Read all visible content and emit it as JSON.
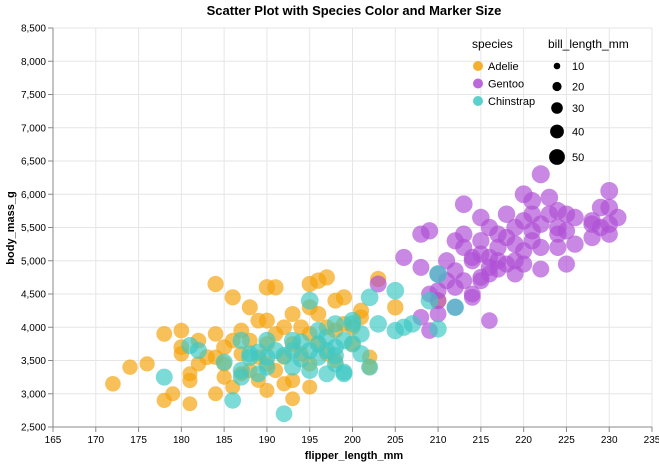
{
  "chart_data": {
    "type": "scatter",
    "title": "Scatter Plot with Species Color and Marker Size",
    "xlabel": "flipper_length_mm",
    "ylabel": "body_mass_g",
    "xlim": [
      165,
      235
    ],
    "ylim": [
      2500,
      8500
    ],
    "x_ticks": [
      "165",
      "170",
      "175",
      "180",
      "185",
      "190",
      "195",
      "200",
      "205",
      "210",
      "215",
      "220",
      "225",
      "230",
      "235"
    ],
    "y_ticks": [
      "2,500",
      "3,000",
      "3,500",
      "4,000",
      "4,500",
      "5,000",
      "5,500",
      "6,000",
      "6,500",
      "7,000",
      "7,500",
      "8,000",
      "8,500"
    ],
    "grid": true,
    "legend_placement": "top-right",
    "color_legend": {
      "title": "species",
      "entries": [
        {
          "label": "Adelie",
          "color": "#f5a20a"
        },
        {
          "label": "Gentoo",
          "color": "#b04fd6"
        },
        {
          "label": "Chinstrap",
          "color": "#3ec9c4"
        }
      ]
    },
    "size_legend": {
      "title": "bill_length_mm",
      "entries": [
        {
          "label": "10",
          "value": 10
        },
        {
          "label": "20",
          "value": 20
        },
        {
          "label": "30",
          "value": 30
        },
        {
          "label": "40",
          "value": 40
        },
        {
          "label": "50",
          "value": 50
        }
      ]
    },
    "series": [
      {
        "name": "Adelie",
        "color": "#f5a20a",
        "points": [
          [
            172,
            3150,
            39
          ],
          [
            174,
            3400,
            38
          ],
          [
            176,
            3450,
            37
          ],
          [
            178,
            3900,
            40
          ],
          [
            178,
            2900,
            37
          ],
          [
            179,
            3000,
            36
          ],
          [
            180,
            3950,
            39
          ],
          [
            180,
            3600,
            38
          ],
          [
            180,
            3700,
            40
          ],
          [
            181,
            3300,
            36
          ],
          [
            181,
            3200,
            37
          ],
          [
            181,
            2850,
            35
          ],
          [
            182,
            3800,
            39
          ],
          [
            182,
            3450,
            38
          ],
          [
            183,
            3550,
            40
          ],
          [
            184,
            4650,
            42
          ],
          [
            184,
            3900,
            39
          ],
          [
            184,
            3550,
            38
          ],
          [
            184,
            3000,
            36
          ],
          [
            185,
            3250,
            37
          ],
          [
            185,
            3700,
            41
          ],
          [
            185,
            3450,
            38
          ],
          [
            186,
            4450,
            42
          ],
          [
            186,
            3800,
            39
          ],
          [
            186,
            3100,
            36
          ],
          [
            187,
            3600,
            38
          ],
          [
            187,
            3300,
            37
          ],
          [
            187,
            3950,
            40
          ],
          [
            188,
            4300,
            41
          ],
          [
            188,
            3350,
            38
          ],
          [
            188,
            3800,
            39
          ],
          [
            189,
            3200,
            36
          ],
          [
            189,
            3550,
            38
          ],
          [
            189,
            4100,
            40
          ],
          [
            190,
            4600,
            43
          ],
          [
            190,
            4100,
            41
          ],
          [
            190,
            3750,
            39
          ],
          [
            190,
            3450,
            38
          ],
          [
            190,
            3050,
            36
          ],
          [
            191,
            4600,
            42
          ],
          [
            191,
            3900,
            39
          ],
          [
            191,
            3350,
            37
          ],
          [
            192,
            4000,
            40
          ],
          [
            192,
            3550,
            38
          ],
          [
            192,
            3150,
            37
          ],
          [
            193,
            4200,
            41
          ],
          [
            193,
            3750,
            39
          ],
          [
            193,
            3200,
            37
          ],
          [
            193,
            2925,
            35
          ],
          [
            194,
            4000,
            40
          ],
          [
            194,
            3600,
            38
          ],
          [
            195,
            4650,
            42
          ],
          [
            195,
            4300,
            41
          ],
          [
            195,
            3900,
            39
          ],
          [
            195,
            3450,
            38
          ],
          [
            195,
            3100,
            36
          ],
          [
            196,
            4700,
            43
          ],
          [
            196,
            4200,
            41
          ],
          [
            196,
            3750,
            39
          ],
          [
            197,
            4750,
            42
          ],
          [
            197,
            4000,
            40
          ],
          [
            197,
            3600,
            38
          ],
          [
            198,
            4400,
            41
          ],
          [
            198,
            3950,
            40
          ],
          [
            198,
            3500,
            38
          ],
          [
            199,
            4450,
            42
          ],
          [
            199,
            4050,
            40
          ],
          [
            200,
            4000,
            41
          ],
          [
            200,
            3750,
            39
          ],
          [
            201,
            4150,
            40
          ],
          [
            201,
            4250,
            41
          ],
          [
            202,
            3550,
            38
          ],
          [
            202,
            3400,
            38
          ],
          [
            203,
            4725,
            42
          ],
          [
            205,
            4300,
            43
          ],
          [
            210,
            4400,
            42
          ]
        ]
      },
      {
        "name": "Gentoo",
        "color": "#b04fd6",
        "points": [
          [
            203,
            4650,
            46
          ],
          [
            206,
            5050,
            47
          ],
          [
            208,
            4150,
            44
          ],
          [
            208,
            4900,
            46
          ],
          [
            208,
            5400,
            48
          ],
          [
            209,
            3950,
            44
          ],
          [
            209,
            4500,
            45
          ],
          [
            209,
            5450,
            48
          ],
          [
            210,
            4200,
            45
          ],
          [
            210,
            4800,
            46
          ],
          [
            210,
            4400,
            46
          ],
          [
            210,
            4550,
            46
          ],
          [
            211,
            4700,
            46
          ],
          [
            211,
            5000,
            47
          ],
          [
            212,
            4600,
            46
          ],
          [
            212,
            4300,
            45
          ],
          [
            212,
            4850,
            46
          ],
          [
            213,
            4700,
            46
          ],
          [
            213,
            5200,
            47
          ],
          [
            213,
            5400,
            48
          ],
          [
            213,
            5850,
            50
          ],
          [
            214,
            4500,
            45
          ],
          [
            214,
            5000,
            47
          ],
          [
            214,
            4450,
            45
          ],
          [
            215,
            4700,
            46
          ],
          [
            215,
            5100,
            47
          ],
          [
            215,
            5650,
            49
          ],
          [
            215,
            5300,
            48
          ],
          [
            215,
            4750,
            46
          ],
          [
            216,
            4900,
            47
          ],
          [
            216,
            5500,
            48
          ],
          [
            216,
            5050,
            47
          ],
          [
            216,
            4100,
            44
          ],
          [
            216,
            4800,
            46
          ],
          [
            217,
            5000,
            47
          ],
          [
            217,
            4875,
            47
          ],
          [
            217,
            5200,
            48
          ],
          [
            218,
            4950,
            47
          ],
          [
            218,
            5700,
            49
          ],
          [
            218,
            5350,
            48
          ],
          [
            219,
            4800,
            46
          ],
          [
            219,
            5250,
            48
          ],
          [
            219,
            5500,
            49
          ],
          [
            220,
            5150,
            47
          ],
          [
            220,
            5600,
            49
          ],
          [
            220,
            6000,
            51
          ],
          [
            220,
            4950,
            47
          ],
          [
            221,
            5300,
            48
          ],
          [
            221,
            5450,
            48
          ],
          [
            221,
            5900,
            50
          ],
          [
            222,
            6300,
            52
          ],
          [
            222,
            5550,
            49
          ],
          [
            222,
            5200,
            47
          ],
          [
            222,
            4875,
            46
          ],
          [
            223,
            5700,
            49
          ],
          [
            223,
            5950,
            50
          ],
          [
            224,
            5400,
            48
          ],
          [
            224,
            5500,
            49
          ],
          [
            224,
            5750,
            50
          ],
          [
            225,
            5450,
            48
          ],
          [
            225,
            4950,
            47
          ],
          [
            225,
            5700,
            49
          ],
          [
            226,
            5250,
            48
          ],
          [
            226,
            5650,
            49
          ],
          [
            228,
            5350,
            48
          ],
          [
            228,
            5550,
            49
          ],
          [
            229,
            5800,
            50
          ],
          [
            229,
            5500,
            48
          ],
          [
            230,
            5800,
            50
          ],
          [
            230,
            5550,
            49
          ],
          [
            230,
            6050,
            51
          ],
          [
            231,
            5650,
            49
          ],
          [
            230,
            5400,
            48
          ],
          [
            228,
            5600,
            49
          ],
          [
            224,
            5200,
            47
          ],
          [
            221,
            5700,
            49
          ],
          [
            219,
            5000,
            47
          ],
          [
            217,
            5400,
            48
          ],
          [
            214,
            5050,
            47
          ],
          [
            212,
            5300,
            47
          ]
        ]
      },
      {
        "name": "Chinstrap",
        "color": "#3ec9c4",
        "points": [
          [
            178,
            3250,
            46
          ],
          [
            181,
            3725,
            47
          ],
          [
            182,
            3650,
            46
          ],
          [
            185,
            3475,
            46
          ],
          [
            186,
            2900,
            44
          ],
          [
            187,
            3350,
            47
          ],
          [
            187,
            3250,
            46
          ],
          [
            187,
            3800,
            48
          ],
          [
            188,
            3550,
            47
          ],
          [
            188,
            3600,
            46
          ],
          [
            189,
            3625,
            47
          ],
          [
            189,
            3300,
            46
          ],
          [
            190,
            3550,
            47
          ],
          [
            190,
            3800,
            48
          ],
          [
            190,
            3400,
            46
          ],
          [
            191,
            3650,
            47
          ],
          [
            192,
            3575,
            47
          ],
          [
            192,
            2700,
            45
          ],
          [
            193,
            3650,
            47
          ],
          [
            193,
            3800,
            48
          ],
          [
            193,
            3400,
            46
          ],
          [
            194,
            3525,
            47
          ],
          [
            194,
            3775,
            48
          ],
          [
            195,
            3650,
            47
          ],
          [
            195,
            3350,
            46
          ],
          [
            195,
            4400,
            50
          ],
          [
            196,
            3550,
            47
          ],
          [
            196,
            3750,
            48
          ],
          [
            196,
            3950,
            48
          ],
          [
            197,
            3300,
            46
          ],
          [
            197,
            3850,
            48
          ],
          [
            197,
            3650,
            47
          ],
          [
            198,
            3700,
            47
          ],
          [
            198,
            4050,
            48
          ],
          [
            198,
            3450,
            46
          ],
          [
            199,
            3800,
            48
          ],
          [
            199,
            3325,
            46
          ],
          [
            200,
            3750,
            48
          ],
          [
            200,
            4050,
            49
          ],
          [
            201,
            3600,
            47
          ],
          [
            201,
            3900,
            48
          ],
          [
            202,
            4450,
            50
          ],
          [
            202,
            3400,
            46
          ],
          [
            203,
            4050,
            49
          ],
          [
            205,
            4550,
            50
          ],
          [
            205,
            3950,
            48
          ],
          [
            206,
            4000,
            48
          ],
          [
            207,
            4050,
            49
          ],
          [
            209,
            4400,
            50
          ],
          [
            210,
            3975,
            48
          ],
          [
            210,
            4800,
            51
          ],
          [
            212,
            4300,
            49
          ],
          [
            199,
            3300,
            46
          ],
          [
            200,
            4100,
            49
          ],
          [
            198,
            3575,
            47
          ]
        ]
      }
    ]
  }
}
